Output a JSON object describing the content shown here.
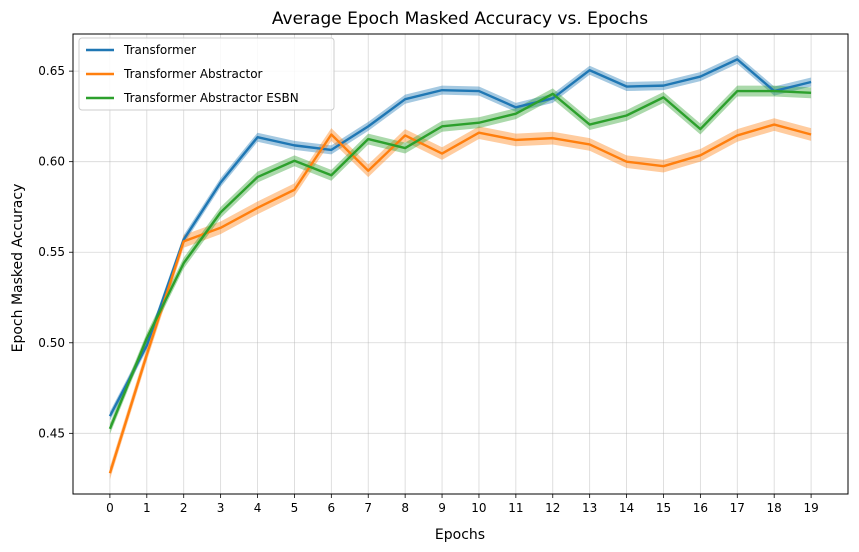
{
  "chart_data": {
    "type": "line",
    "title": "Average Epoch Masked Accuracy vs. Epochs",
    "xlabel": "Epochs",
    "ylabel": "Epoch Masked Accuracy",
    "xlim": [
      -1,
      20
    ],
    "ylim": [
      0.4165,
      0.6705
    ],
    "x": [
      0,
      1,
      2,
      3,
      4,
      5,
      6,
      7,
      8,
      9,
      10,
      11,
      12,
      13,
      14,
      15,
      16,
      17,
      18,
      19
    ],
    "xticks": [
      "0",
      "1",
      "2",
      "3",
      "4",
      "5",
      "6",
      "7",
      "8",
      "9",
      "10",
      "11",
      "12",
      "13",
      "14",
      "15",
      "16",
      "17",
      "18",
      "19"
    ],
    "yticks": [
      0.45,
      0.5,
      0.55,
      0.6,
      0.65
    ],
    "ytick_labels": [
      "0.45",
      "0.50",
      "0.55",
      "0.60",
      "0.65"
    ],
    "grid": true,
    "legend_position": "top-left",
    "series": [
      {
        "name": "Transformer",
        "color": "#1f77b4",
        "values": [
          0.4595,
          0.4985,
          0.557,
          0.5885,
          0.6135,
          0.609,
          0.6065,
          0.6195,
          0.6345,
          0.6395,
          0.639,
          0.63,
          0.635,
          0.6505,
          0.6415,
          0.642,
          0.647,
          0.6565,
          0.639,
          0.644
        ],
        "band": 0.0025
      },
      {
        "name": "Transformer Abstractor",
        "color": "#ff7f0e",
        "values": [
          0.428,
          0.4935,
          0.556,
          0.5635,
          0.5745,
          0.5845,
          0.615,
          0.595,
          0.6145,
          0.6045,
          0.616,
          0.612,
          0.613,
          0.6095,
          0.6,
          0.5975,
          0.6035,
          0.6145,
          0.6205,
          0.615
        ],
        "band": 0.0035
      },
      {
        "name": "Transformer Abstractor ESBN",
        "color": "#2ca02c",
        "values": [
          0.4525,
          0.5025,
          0.544,
          0.572,
          0.5915,
          0.6005,
          0.5925,
          0.6125,
          0.6075,
          0.6195,
          0.6215,
          0.6265,
          0.6375,
          0.6205,
          0.6255,
          0.6355,
          0.618,
          0.639,
          0.639,
          0.638
        ],
        "band": 0.003
      }
    ]
  }
}
